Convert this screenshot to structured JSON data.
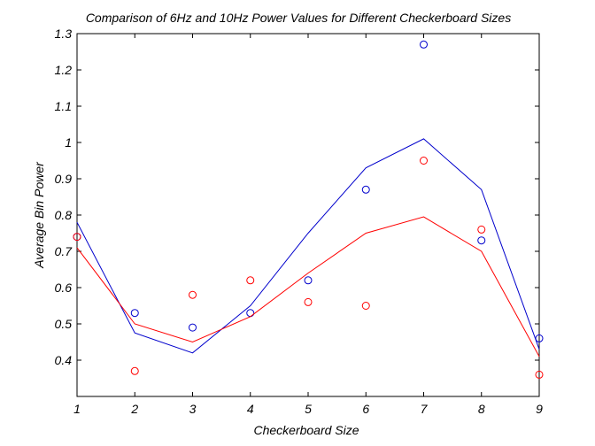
{
  "chart_data": {
    "type": "scatter",
    "title": "Comparison of 6Hz and 10Hz Power Values for Different Checkerboard Sizes",
    "xlabel": "Checkerboard Size",
    "ylabel": "Average Bin Power",
    "xlim": [
      1,
      9
    ],
    "ylim": [
      0.3,
      1.3
    ],
    "xticks": [
      "1",
      "2",
      "3",
      "4",
      "5",
      "6",
      "7",
      "8",
      "9"
    ],
    "yticks": [
      "0.4",
      "0.5",
      "0.6",
      "0.7",
      "0.8",
      "0.9",
      "1",
      "1.1",
      "1.2",
      "1.3"
    ],
    "grid": false,
    "series": [
      {
        "color": "#0000cc",
        "marker": "circle",
        "x": [
          1,
          2,
          3,
          4,
          5,
          6,
          7,
          8,
          9
        ],
        "points": [
          0.74,
          0.53,
          0.49,
          0.53,
          0.62,
          0.87,
          1.27,
          0.73,
          0.46
        ],
        "fit": [
          0.78,
          0.475,
          0.42,
          0.55,
          0.75,
          0.93,
          1.01,
          0.87,
          0.43
        ]
      },
      {
        "color": "#ff0000",
        "marker": "circle",
        "x": [
          1,
          2,
          3,
          4,
          5,
          6,
          7,
          8,
          9
        ],
        "points": [
          0.74,
          0.37,
          0.58,
          0.62,
          0.56,
          0.55,
          0.95,
          0.76,
          0.36
        ],
        "fit": [
          0.71,
          0.5,
          0.45,
          0.52,
          0.64,
          0.75,
          0.795,
          0.7,
          0.41
        ]
      }
    ]
  }
}
